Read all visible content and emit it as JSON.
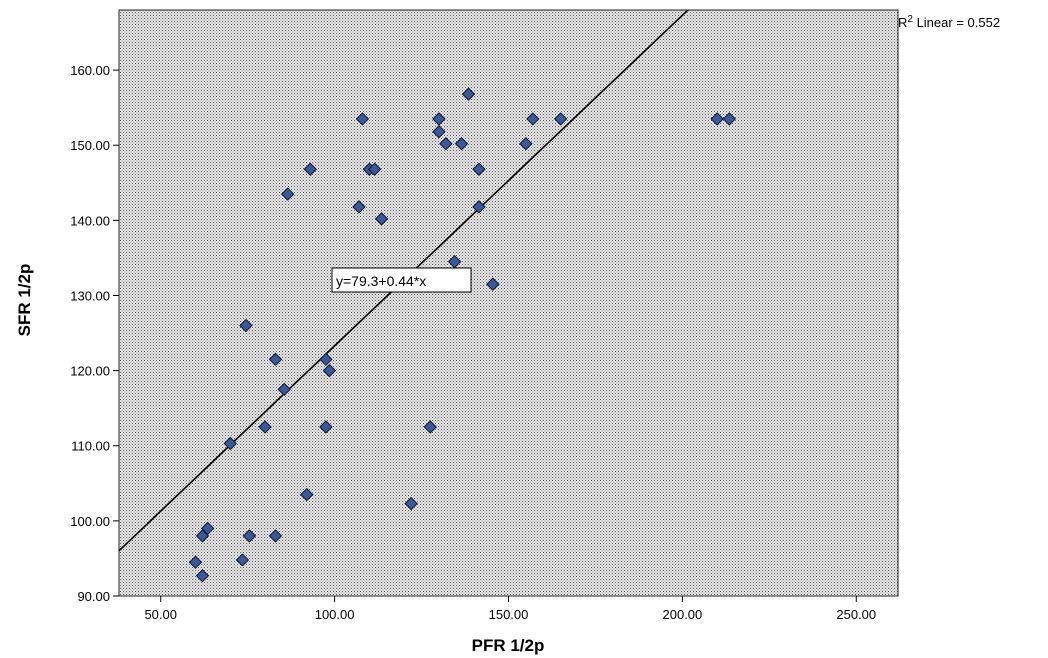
{
  "chart_data": {
    "type": "scatter",
    "xlabel": "PFR 1/2p",
    "ylabel": "SFR 1/2p",
    "xlim": [
      38,
      262
    ],
    "ylim": [
      90,
      168
    ],
    "xticks": [
      50,
      100,
      150,
      200,
      250
    ],
    "yticks": [
      90,
      100,
      110,
      120,
      130,
      140,
      150,
      160
    ],
    "xtick_labels": [
      "50.00",
      "100.00",
      "150.00",
      "200.00",
      "250.00"
    ],
    "ytick_labels": [
      "90.00",
      "100.00",
      "110.00",
      "120.00",
      "130.00",
      "140.00",
      "150.00",
      "160.00"
    ],
    "grid": false,
    "background": "stippled-gray",
    "marker_color": "#3b5998",
    "line_color": "#000000",
    "fit": {
      "intercept": 79.3,
      "slope": 0.44,
      "equation_label": "y=79.3+0.44*x",
      "r2_prefix": "R",
      "r2_sup": "2",
      "r2_suffix": " Linear = 0.552"
    },
    "points": [
      {
        "x": 60,
        "y": 94.5
      },
      {
        "x": 62,
        "y": 92.7
      },
      {
        "x": 62,
        "y": 98
      },
      {
        "x": 63.5,
        "y": 99
      },
      {
        "x": 73.5,
        "y": 94.8
      },
      {
        "x": 75.5,
        "y": 98
      },
      {
        "x": 83,
        "y": 98
      },
      {
        "x": 92,
        "y": 103.5
      },
      {
        "x": 122,
        "y": 102.3
      },
      {
        "x": 70,
        "y": 110.3
      },
      {
        "x": 80,
        "y": 112.5
      },
      {
        "x": 97.5,
        "y": 112.5
      },
      {
        "x": 127.5,
        "y": 112.5
      },
      {
        "x": 85.5,
        "y": 117.5
      },
      {
        "x": 98.5,
        "y": 120
      },
      {
        "x": 83,
        "y": 121.5
      },
      {
        "x": 97.5,
        "y": 121.5
      },
      {
        "x": 74.5,
        "y": 126
      },
      {
        "x": 134.5,
        "y": 134.5
      },
      {
        "x": 145.5,
        "y": 131.5
      },
      {
        "x": 107,
        "y": 141.8
      },
      {
        "x": 113.5,
        "y": 140.2
      },
      {
        "x": 141.5,
        "y": 141.8
      },
      {
        "x": 86.5,
        "y": 143.5
      },
      {
        "x": 93,
        "y": 146.8
      },
      {
        "x": 110,
        "y": 146.8
      },
      {
        "x": 111.5,
        "y": 146.8
      },
      {
        "x": 141.5,
        "y": 146.8
      },
      {
        "x": 132,
        "y": 150.2
      },
      {
        "x": 136.5,
        "y": 150.2
      },
      {
        "x": 155,
        "y": 150.2
      },
      {
        "x": 130,
        "y": 151.8
      },
      {
        "x": 108,
        "y": 153.5
      },
      {
        "x": 130,
        "y": 153.5
      },
      {
        "x": 157,
        "y": 153.5
      },
      {
        "x": 165,
        "y": 153.5
      },
      {
        "x": 210,
        "y": 153.5
      },
      {
        "x": 213.5,
        "y": 153.5
      },
      {
        "x": 138.5,
        "y": 156.8
      }
    ]
  }
}
